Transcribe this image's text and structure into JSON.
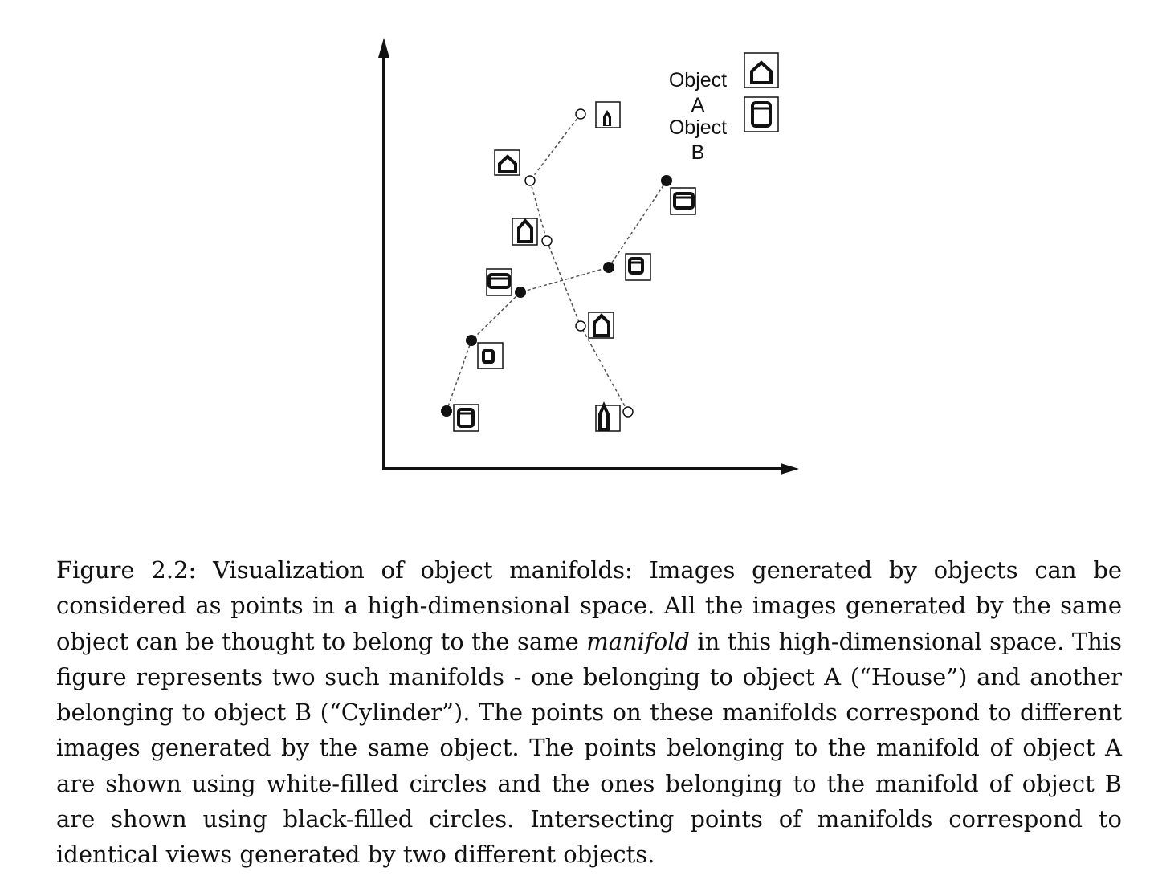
{
  "figure": {
    "legend": {
      "object_a_line1": "Object",
      "object_a_line2": "A",
      "object_b_line1": "Object",
      "object_b_line2": "B"
    },
    "manifold_a": {
      "name": "House",
      "marker": "white-filled circle",
      "points": [
        {
          "view": "house-small-tall"
        },
        {
          "view": "house-front"
        },
        {
          "view": "house-tall"
        },
        {
          "view": "house-medium"
        },
        {
          "view": "house-narrow-tall"
        }
      ]
    },
    "manifold_b": {
      "name": "Cylinder",
      "marker": "black-filled circle",
      "points": [
        {
          "view": "cylinder-wide"
        },
        {
          "view": "cylinder-medium"
        },
        {
          "view": "cylinder-flat"
        },
        {
          "view": "cylinder-small"
        },
        {
          "view": "cylinder-upright"
        }
      ]
    }
  },
  "caption": {
    "label": "Figure 2.2:",
    "text_part1": "Visualization of object manifolds: Images generated by objects can be considered as points in a high-dimensional space. All the images generated by the same object can be thought to belong to the same",
    "emphasis": "manifold",
    "text_part2": "in this high-dimensional space. This figure represents two such manifolds - one belonging to object A (“House”) and another belonging to object B (“Cylinder”). The points on these manifolds correspond to different images generated by the same object. The points belonging to the manifold of object A are shown using white-filled circles and the ones belonging to the manifold of object B are shown using black-filled circles. Intersecting points of manifolds correspond to identical views generated by two different objects."
  }
}
